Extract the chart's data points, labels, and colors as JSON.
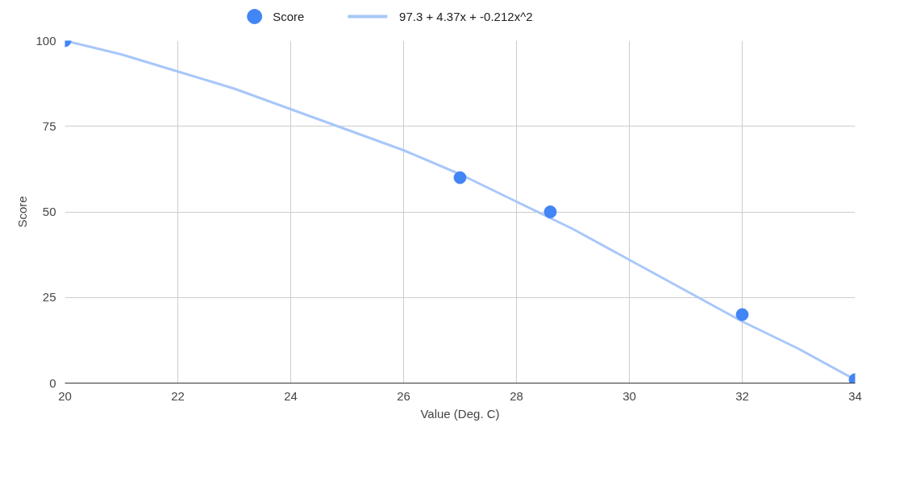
{
  "chart_data": {
    "type": "scatter",
    "xlabel": "Value (Deg. C)",
    "ylabel": "Score",
    "xlim": [
      20,
      34
    ],
    "xticks": [
      20,
      22,
      24,
      26,
      28,
      30,
      32,
      34
    ],
    "ylim": [
      0,
      100
    ],
    "yticks": [
      0,
      25,
      50,
      75,
      100
    ],
    "grid": true,
    "legend": "top",
    "series": [
      {
        "name": "Score",
        "color": "#4285f4",
        "marker": "circle",
        "x": [
          20,
          27,
          28.6,
          32,
          34
        ],
        "values": [
          100,
          60,
          50,
          20,
          1
        ]
      },
      {
        "name": "97.3 + 4.37x + -0.212x^2",
        "type": "line",
        "color": "#a8c7fa",
        "line_style": "solid",
        "x": [
          20,
          21,
          22,
          23,
          24,
          25,
          26,
          27,
          28,
          29,
          30,
          31,
          32,
          33,
          34
        ],
        "values": [
          100,
          96,
          91,
          86,
          80,
          74,
          68,
          61,
          53,
          45,
          36,
          27,
          18,
          10,
          1
        ]
      }
    ]
  }
}
